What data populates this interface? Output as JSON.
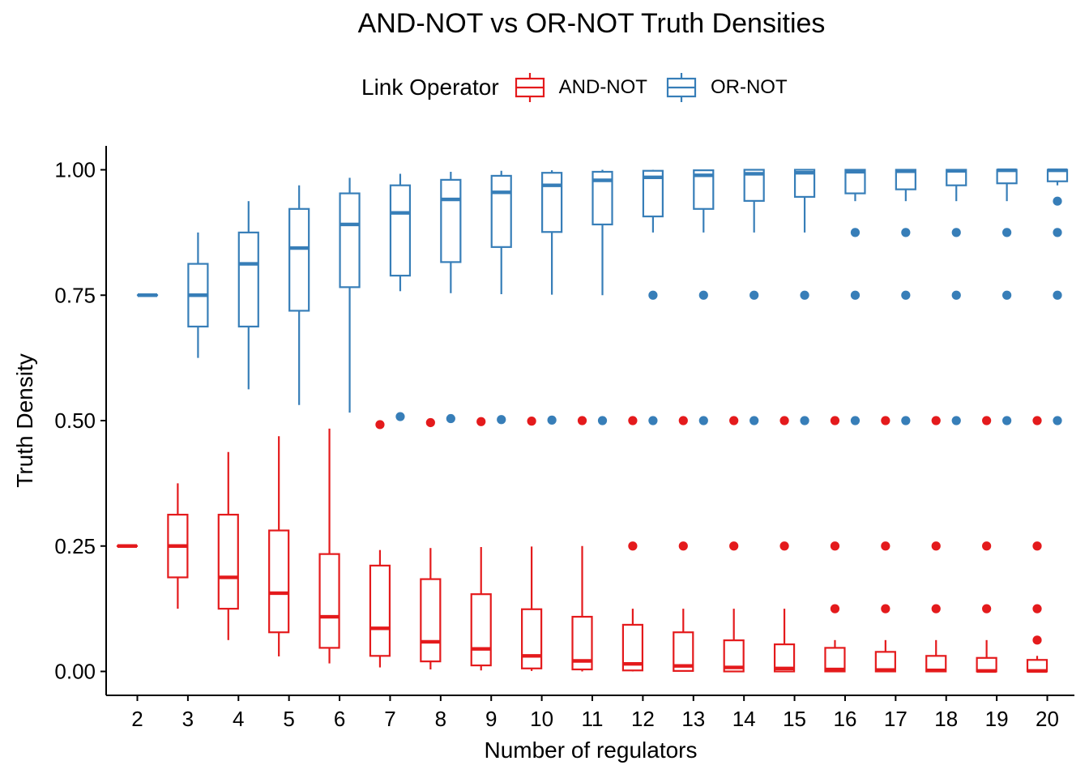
{
  "chart_data": {
    "type": "boxplot",
    "title": "AND-NOT vs OR-NOT Truth Densities",
    "xlabel": "Number of regulators",
    "ylabel": "Truth Density",
    "ylim": [
      -0.05,
      1.05
    ],
    "yticks": [
      "0.00",
      "0.25",
      "0.50",
      "0.75",
      "1.00"
    ],
    "ytick_values": [
      0,
      0.25,
      0.5,
      0.75,
      1.0
    ],
    "categories": [
      "2",
      "3",
      "4",
      "5",
      "6",
      "7",
      "8",
      "9",
      "10",
      "11",
      "12",
      "13",
      "14",
      "15",
      "16",
      "17",
      "18",
      "19",
      "20"
    ],
    "legend": {
      "title": "Link Operator",
      "position": "top"
    },
    "series": [
      {
        "name": "AND-NOT",
        "color": "#e41a1c",
        "boxes": [
          {
            "x": "2",
            "whislo": 0.25,
            "q1": 0.25,
            "med": 0.25,
            "q3": 0.25,
            "whishi": 0.25,
            "outliers": []
          },
          {
            "x": "3",
            "whislo": 0.125,
            "q1": 0.1875,
            "med": 0.25,
            "q3": 0.3125,
            "whishi": 0.375,
            "outliers": []
          },
          {
            "x": "4",
            "whislo": 0.0625,
            "q1": 0.125,
            "med": 0.1875,
            "q3": 0.3125,
            "whishi": 0.4375,
            "outliers": []
          },
          {
            "x": "5",
            "whislo": 0.03,
            "q1": 0.078,
            "med": 0.156,
            "q3": 0.281,
            "whishi": 0.469,
            "outliers": []
          },
          {
            "x": "6",
            "whislo": 0.016,
            "q1": 0.047,
            "med": 0.109,
            "q3": 0.234,
            "whishi": 0.484,
            "outliers": []
          },
          {
            "x": "7",
            "whislo": 0.008,
            "q1": 0.031,
            "med": 0.086,
            "q3": 0.211,
            "whishi": 0.242,
            "outliers": [
              0.492
            ]
          },
          {
            "x": "8",
            "whislo": 0.004,
            "q1": 0.02,
            "med": 0.059,
            "q3": 0.184,
            "whishi": 0.246,
            "outliers": [
              0.496
            ]
          },
          {
            "x": "9",
            "whislo": 0.002,
            "q1": 0.012,
            "med": 0.045,
            "q3": 0.154,
            "whishi": 0.248,
            "outliers": [
              0.498
            ]
          },
          {
            "x": "10",
            "whislo": 0.001,
            "q1": 0.006,
            "med": 0.031,
            "q3": 0.124,
            "whishi": 0.249,
            "outliers": [
              0.499
            ]
          },
          {
            "x": "11",
            "whislo": 0.0,
            "q1": 0.004,
            "med": 0.021,
            "q3": 0.109,
            "whishi": 0.25,
            "outliers": [
              0.5
            ]
          },
          {
            "x": "12",
            "whislo": 0.0,
            "q1": 0.002,
            "med": 0.015,
            "q3": 0.093,
            "whishi": 0.125,
            "outliers": [
              0.25,
              0.5
            ]
          },
          {
            "x": "13",
            "whislo": 0.0,
            "q1": 0.001,
            "med": 0.011,
            "q3": 0.078,
            "whishi": 0.125,
            "outliers": [
              0.25,
              0.5
            ]
          },
          {
            "x": "14",
            "whislo": 0.0,
            "q1": 0.0,
            "med": 0.008,
            "q3": 0.062,
            "whishi": 0.125,
            "outliers": [
              0.25,
              0.5
            ]
          },
          {
            "x": "15",
            "whislo": 0.0,
            "q1": 0.0,
            "med": 0.006,
            "q3": 0.054,
            "whishi": 0.125,
            "outliers": [
              0.25,
              0.5
            ]
          },
          {
            "x": "16",
            "whislo": 0.0,
            "q1": 0.0,
            "med": 0.004,
            "q3": 0.047,
            "whishi": 0.0625,
            "outliers": [
              0.125,
              0.25,
              0.5
            ]
          },
          {
            "x": "17",
            "whislo": 0.0,
            "q1": 0.0,
            "med": 0.003,
            "q3": 0.039,
            "whishi": 0.0625,
            "outliers": [
              0.125,
              0.25,
              0.5
            ]
          },
          {
            "x": "18",
            "whislo": 0.0,
            "q1": 0.0,
            "med": 0.002,
            "q3": 0.031,
            "whishi": 0.0625,
            "outliers": [
              0.125,
              0.25,
              0.5
            ]
          },
          {
            "x": "19",
            "whislo": 0.0,
            "q1": 0.0,
            "med": 0.001,
            "q3": 0.027,
            "whishi": 0.0625,
            "outliers": [
              0.125,
              0.25,
              0.5
            ]
          },
          {
            "x": "20",
            "whislo": 0.0,
            "q1": 0.0,
            "med": 0.001,
            "q3": 0.023,
            "whishi": 0.031,
            "outliers": [
              0.0625,
              0.125,
              0.25,
              0.5
            ]
          }
        ]
      },
      {
        "name": "OR-NOT",
        "color": "#377eb8",
        "boxes": [
          {
            "x": "2",
            "whislo": 0.75,
            "q1": 0.75,
            "med": 0.75,
            "q3": 0.75,
            "whishi": 0.75,
            "outliers": []
          },
          {
            "x": "3",
            "whislo": 0.625,
            "q1": 0.6875,
            "med": 0.75,
            "q3": 0.8125,
            "whishi": 0.875,
            "outliers": []
          },
          {
            "x": "4",
            "whislo": 0.5625,
            "q1": 0.6875,
            "med": 0.8125,
            "q3": 0.875,
            "whishi": 0.9375,
            "outliers": []
          },
          {
            "x": "5",
            "whislo": 0.531,
            "q1": 0.719,
            "med": 0.844,
            "q3": 0.922,
            "whishi": 0.969,
            "outliers": []
          },
          {
            "x": "6",
            "whislo": 0.516,
            "q1": 0.766,
            "med": 0.891,
            "q3": 0.953,
            "whishi": 0.984,
            "outliers": []
          },
          {
            "x": "7",
            "whislo": 0.758,
            "q1": 0.789,
            "med": 0.914,
            "q3": 0.969,
            "whishi": 0.992,
            "outliers": [
              0.508
            ]
          },
          {
            "x": "8",
            "whislo": 0.754,
            "q1": 0.816,
            "med": 0.941,
            "q3": 0.98,
            "whishi": 0.996,
            "outliers": [
              0.504
            ]
          },
          {
            "x": "9",
            "whislo": 0.752,
            "q1": 0.846,
            "med": 0.955,
            "q3": 0.988,
            "whishi": 0.998,
            "outliers": [
              0.502
            ]
          },
          {
            "x": "10",
            "whislo": 0.751,
            "q1": 0.876,
            "med": 0.969,
            "q3": 0.994,
            "whishi": 0.999,
            "outliers": [
              0.501
            ]
          },
          {
            "x": "11",
            "whislo": 0.75,
            "q1": 0.891,
            "med": 0.979,
            "q3": 0.996,
            "whishi": 1.0,
            "outliers": [
              0.5
            ]
          },
          {
            "x": "12",
            "whislo": 0.875,
            "q1": 0.907,
            "med": 0.985,
            "q3": 0.998,
            "whishi": 1.0,
            "outliers": [
              0.5,
              0.75
            ]
          },
          {
            "x": "13",
            "whislo": 0.875,
            "q1": 0.922,
            "med": 0.989,
            "q3": 0.999,
            "whishi": 1.0,
            "outliers": [
              0.5,
              0.75
            ]
          },
          {
            "x": "14",
            "whislo": 0.875,
            "q1": 0.938,
            "med": 0.992,
            "q3": 1.0,
            "whishi": 1.0,
            "outliers": [
              0.5,
              0.75
            ]
          },
          {
            "x": "15",
            "whislo": 0.875,
            "q1": 0.946,
            "med": 0.994,
            "q3": 1.0,
            "whishi": 1.0,
            "outliers": [
              0.5,
              0.75
            ]
          },
          {
            "x": "16",
            "whislo": 0.9375,
            "q1": 0.953,
            "med": 0.996,
            "q3": 1.0,
            "whishi": 1.0,
            "outliers": [
              0.5,
              0.75,
              0.875
            ]
          },
          {
            "x": "17",
            "whislo": 0.9375,
            "q1": 0.961,
            "med": 0.997,
            "q3": 1.0,
            "whishi": 1.0,
            "outliers": [
              0.5,
              0.75,
              0.875
            ]
          },
          {
            "x": "18",
            "whislo": 0.9375,
            "q1": 0.969,
            "med": 0.998,
            "q3": 1.0,
            "whishi": 1.0,
            "outliers": [
              0.5,
              0.75,
              0.875
            ]
          },
          {
            "x": "19",
            "whislo": 0.9375,
            "q1": 0.973,
            "med": 0.999,
            "q3": 1.0,
            "whishi": 1.0,
            "outliers": [
              0.5,
              0.75,
              0.875
            ]
          },
          {
            "x": "20",
            "whislo": 0.969,
            "q1": 0.977,
            "med": 0.999,
            "q3": 1.0,
            "whishi": 1.0,
            "outliers": [
              0.5,
              0.75,
              0.875,
              0.9375
            ]
          }
        ]
      }
    ]
  }
}
